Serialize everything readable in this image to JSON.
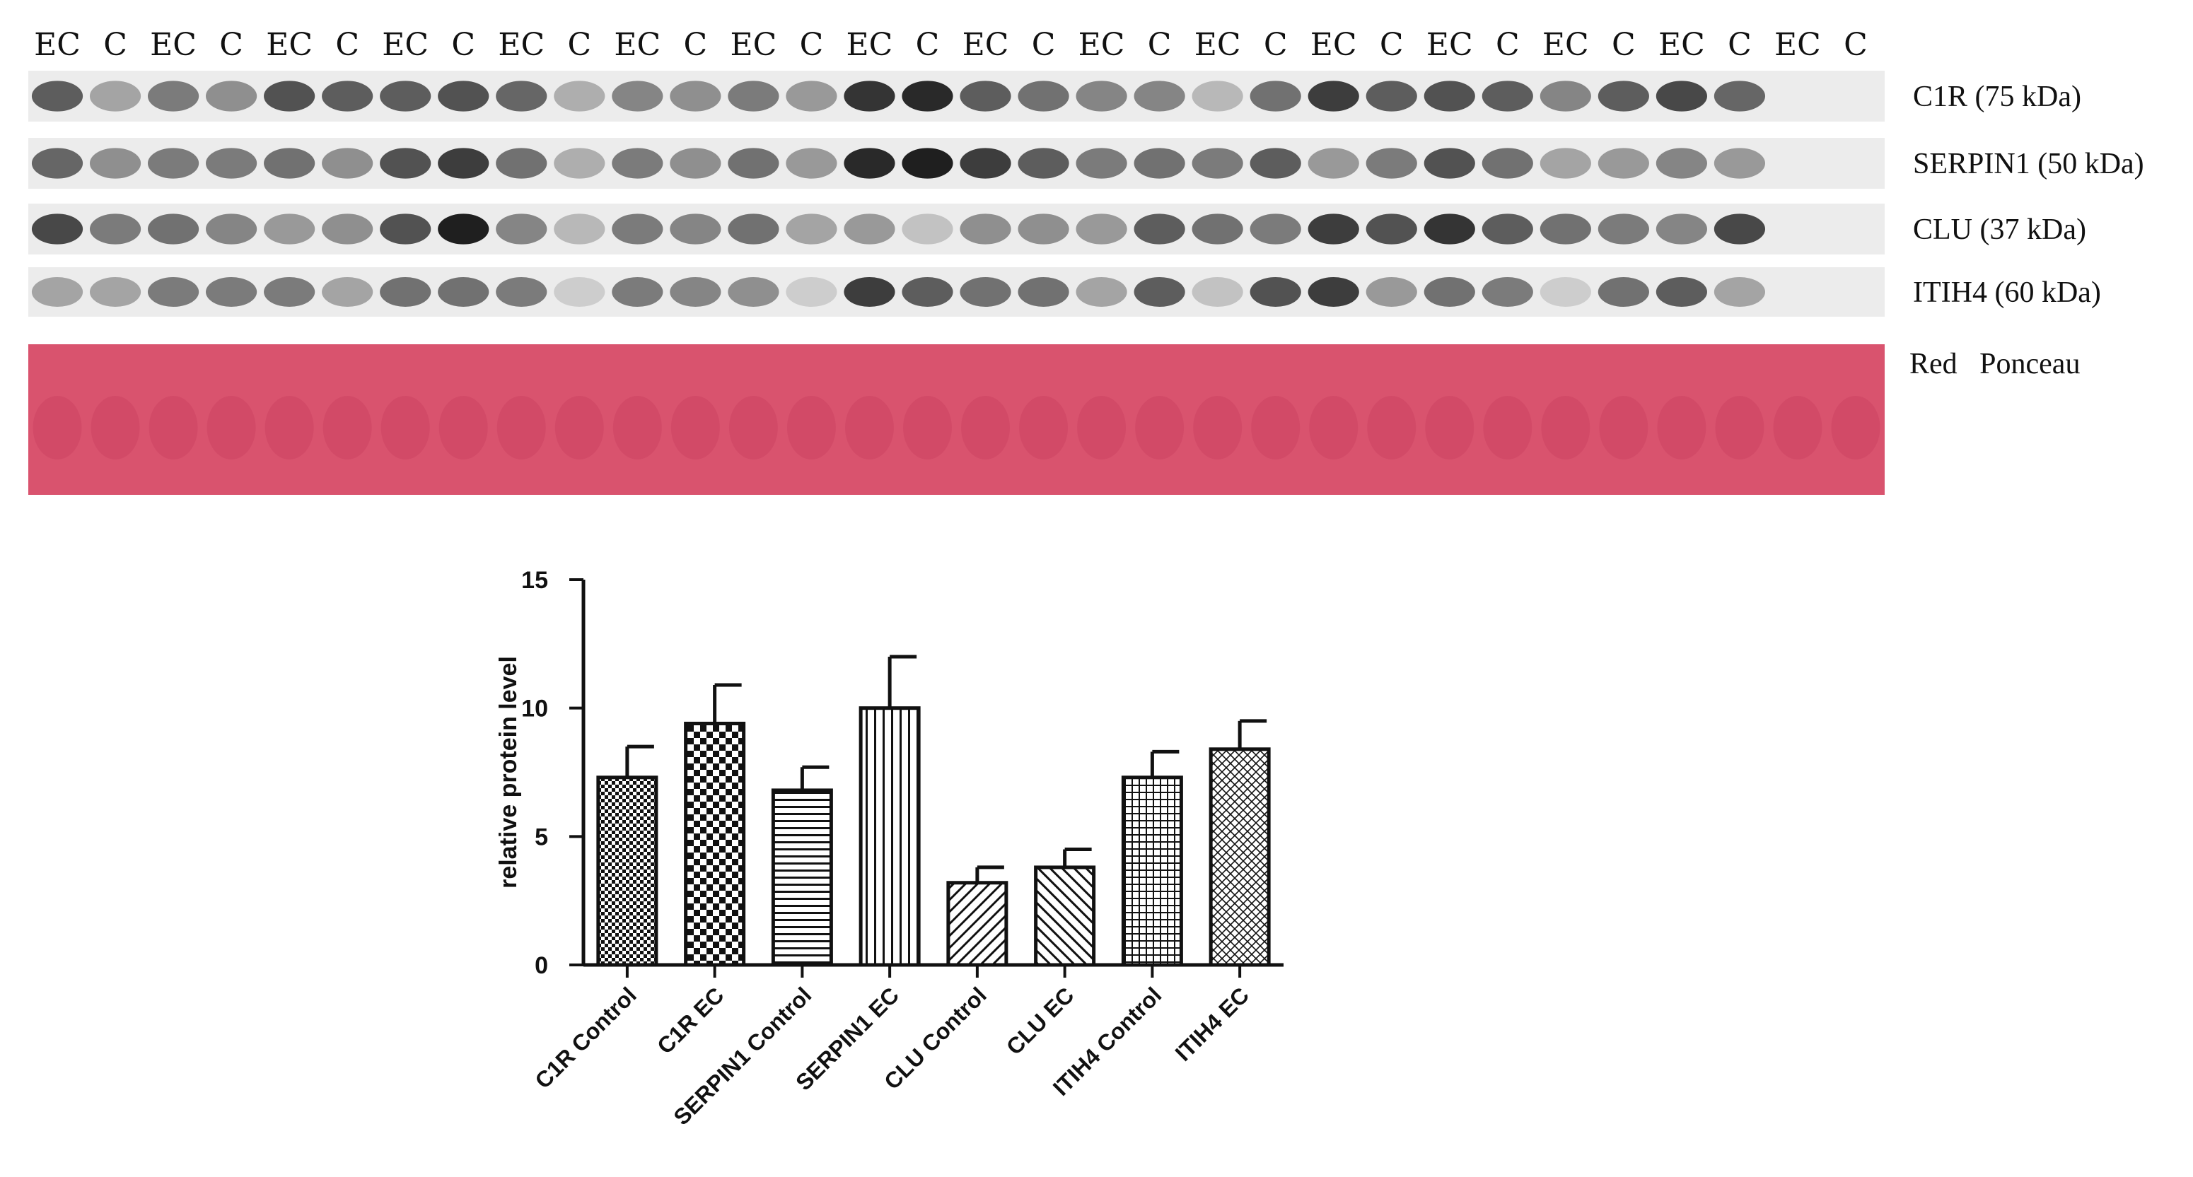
{
  "blot": {
    "lane_labels": [
      "EC",
      "C",
      "EC",
      "C",
      "EC",
      "C",
      "EC",
      "C",
      "EC",
      "C",
      "EC",
      "C",
      "EC",
      "C",
      "EC",
      "C",
      "EC",
      "C",
      "EC",
      "C",
      "EC",
      "C",
      "EC",
      "C",
      "EC",
      "C",
      "EC",
      "C",
      "EC",
      "C",
      "EC",
      "C"
    ],
    "rows": [
      {
        "label": "C1R (75 kDa)",
        "intensities": [
          0.7,
          0.35,
          0.55,
          0.45,
          0.75,
          0.7,
          0.7,
          0.75,
          0.65,
          0.3,
          0.5,
          0.45,
          0.55,
          0.4,
          0.9,
          0.95,
          0.7,
          0.6,
          0.5,
          0.5,
          0.25,
          0.6,
          0.85,
          0.7,
          0.75,
          0.7,
          0.5,
          0.7,
          0.8,
          0.65,
          0.0,
          0.0
        ]
      },
      {
        "label": "SERPIN1 (50 kDa)",
        "intensities": [
          0.65,
          0.45,
          0.55,
          0.55,
          0.6,
          0.45,
          0.75,
          0.85,
          0.6,
          0.3,
          0.55,
          0.45,
          0.6,
          0.4,
          0.95,
          1.0,
          0.85,
          0.7,
          0.55,
          0.6,
          0.55,
          0.7,
          0.4,
          0.55,
          0.75,
          0.6,
          0.35,
          0.4,
          0.5,
          0.4,
          0.0,
          0.0
        ]
      },
      {
        "label": "CLU (37 kDa)",
        "intensities": [
          0.8,
          0.55,
          0.6,
          0.5,
          0.4,
          0.45,
          0.75,
          1.0,
          0.5,
          0.25,
          0.55,
          0.5,
          0.6,
          0.35,
          0.4,
          0.2,
          0.45,
          0.45,
          0.4,
          0.7,
          0.6,
          0.55,
          0.85,
          0.75,
          0.9,
          0.7,
          0.6,
          0.55,
          0.5,
          0.8,
          0.0,
          0.0
        ]
      },
      {
        "label": "ITIH4 (60 kDa)",
        "intensities": [
          0.35,
          0.35,
          0.55,
          0.55,
          0.55,
          0.35,
          0.6,
          0.6,
          0.55,
          0.15,
          0.55,
          0.5,
          0.45,
          0.15,
          0.85,
          0.7,
          0.6,
          0.6,
          0.35,
          0.7,
          0.2,
          0.75,
          0.85,
          0.4,
          0.6,
          0.55,
          0.15,
          0.6,
          0.7,
          0.35,
          0.0,
          0.0
        ]
      }
    ],
    "stain_label": "Red   Ponceau",
    "stain_color": "#d9536e"
  },
  "chart_data": {
    "type": "bar",
    "categories": [
      "C1R Control",
      "C1R EC",
      "SERPIN1 Control",
      "SERPIN1 EC",
      "CLU Control",
      "CLU EC",
      "ITIH4 Control",
      "ITIH4 EC"
    ],
    "values": [
      7.3,
      9.4,
      6.8,
      10.0,
      3.2,
      3.8,
      7.3,
      8.4
    ],
    "errors": [
      1.2,
      1.5,
      0.9,
      2.0,
      0.6,
      0.7,
      1.0,
      1.1
    ],
    "patterns": [
      "checker-small",
      "checker-large",
      "horizontal-lines",
      "vertical-lines",
      "diagonal-right",
      "diagonal-left",
      "grid",
      "diagonal-cross"
    ],
    "ylabel": "relative protein level",
    "ylim": [
      0,
      15
    ],
    "yticks": [
      0,
      5,
      10,
      15
    ]
  }
}
